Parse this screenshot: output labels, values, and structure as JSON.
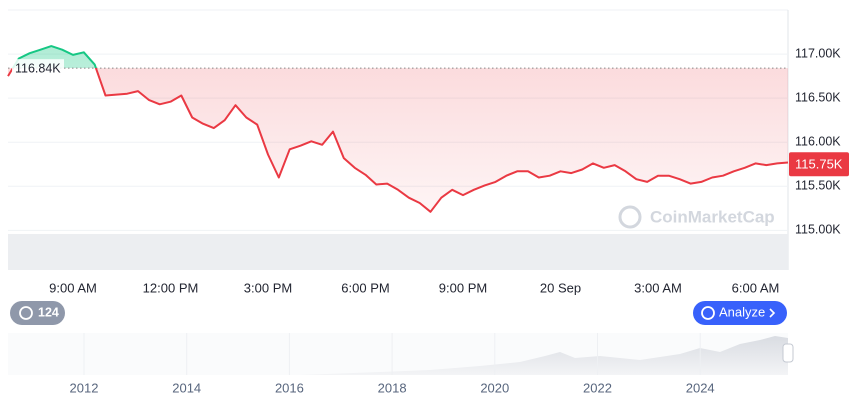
{
  "chart_data": {
    "type": "line",
    "categories": [
      null,
      null,
      null,
      null,
      null,
      null,
      "9:00 AM",
      null,
      null,
      null,
      null,
      null,
      null,
      null,
      null,
      "12:00 PM",
      null,
      null,
      null,
      null,
      null,
      null,
      null,
      null,
      "3:00 PM",
      null,
      null,
      null,
      null,
      null,
      null,
      null,
      null,
      "6:00 PM",
      null,
      null,
      null,
      null,
      null,
      null,
      null,
      null,
      "9:00 PM",
      null,
      null,
      null,
      null,
      null,
      null,
      null,
      null,
      "20 Sep",
      null,
      null,
      null,
      null,
      null,
      null,
      null,
      null,
      "3:00 AM",
      null,
      null,
      null,
      null,
      null,
      null,
      null,
      null,
      "6:00 AM",
      null,
      null,
      null
    ],
    "values": [
      116750,
      116950,
      117010,
      117050,
      117090,
      117050,
      116990,
      117020,
      116880,
      116530,
      116540,
      116550,
      116580,
      116480,
      116430,
      116460,
      116530,
      116280,
      116210,
      116160,
      116250,
      116420,
      116280,
      116200,
      115860,
      115600,
      115920,
      115960,
      116010,
      115970,
      116120,
      115820,
      115710,
      115630,
      115520,
      115530,
      115460,
      115370,
      115310,
      115210,
      115370,
      115460,
      115400,
      115460,
      115510,
      115550,
      115620,
      115670,
      115670,
      115600,
      115620,
      115670,
      115650,
      115690,
      115760,
      115710,
      115740,
      115670,
      115580,
      115550,
      115620,
      115620,
      115580,
      115530,
      115550,
      115600,
      115620,
      115670,
      115710,
      115760,
      115740,
      115760,
      115770
    ],
    "color_above": "#16c784",
    "color_below": "#ea3943",
    "ylim": [
      114550,
      117500
    ],
    "yticks": [
      {
        "value": 115000,
        "label": "115.00K"
      },
      {
        "value": 115500,
        "label": "115.50K"
      },
      {
        "value": 116000,
        "label": "116.00K"
      },
      {
        "value": 116500,
        "label": "116.50K"
      },
      {
        "value": 117000,
        "label": "117.00K"
      }
    ],
    "grid": true,
    "reference": {
      "value": 116840,
      "label": "116.84K"
    },
    "current": {
      "value": 115750,
      "label": "115.75K"
    }
  },
  "ui": {
    "watermark": "CoinMarketCap",
    "history_count": "124",
    "analyze_button": "Analyze",
    "navigator_labels": [
      "2012",
      "2014",
      "2016",
      "2018",
      "2020",
      "2022",
      "2024"
    ]
  }
}
